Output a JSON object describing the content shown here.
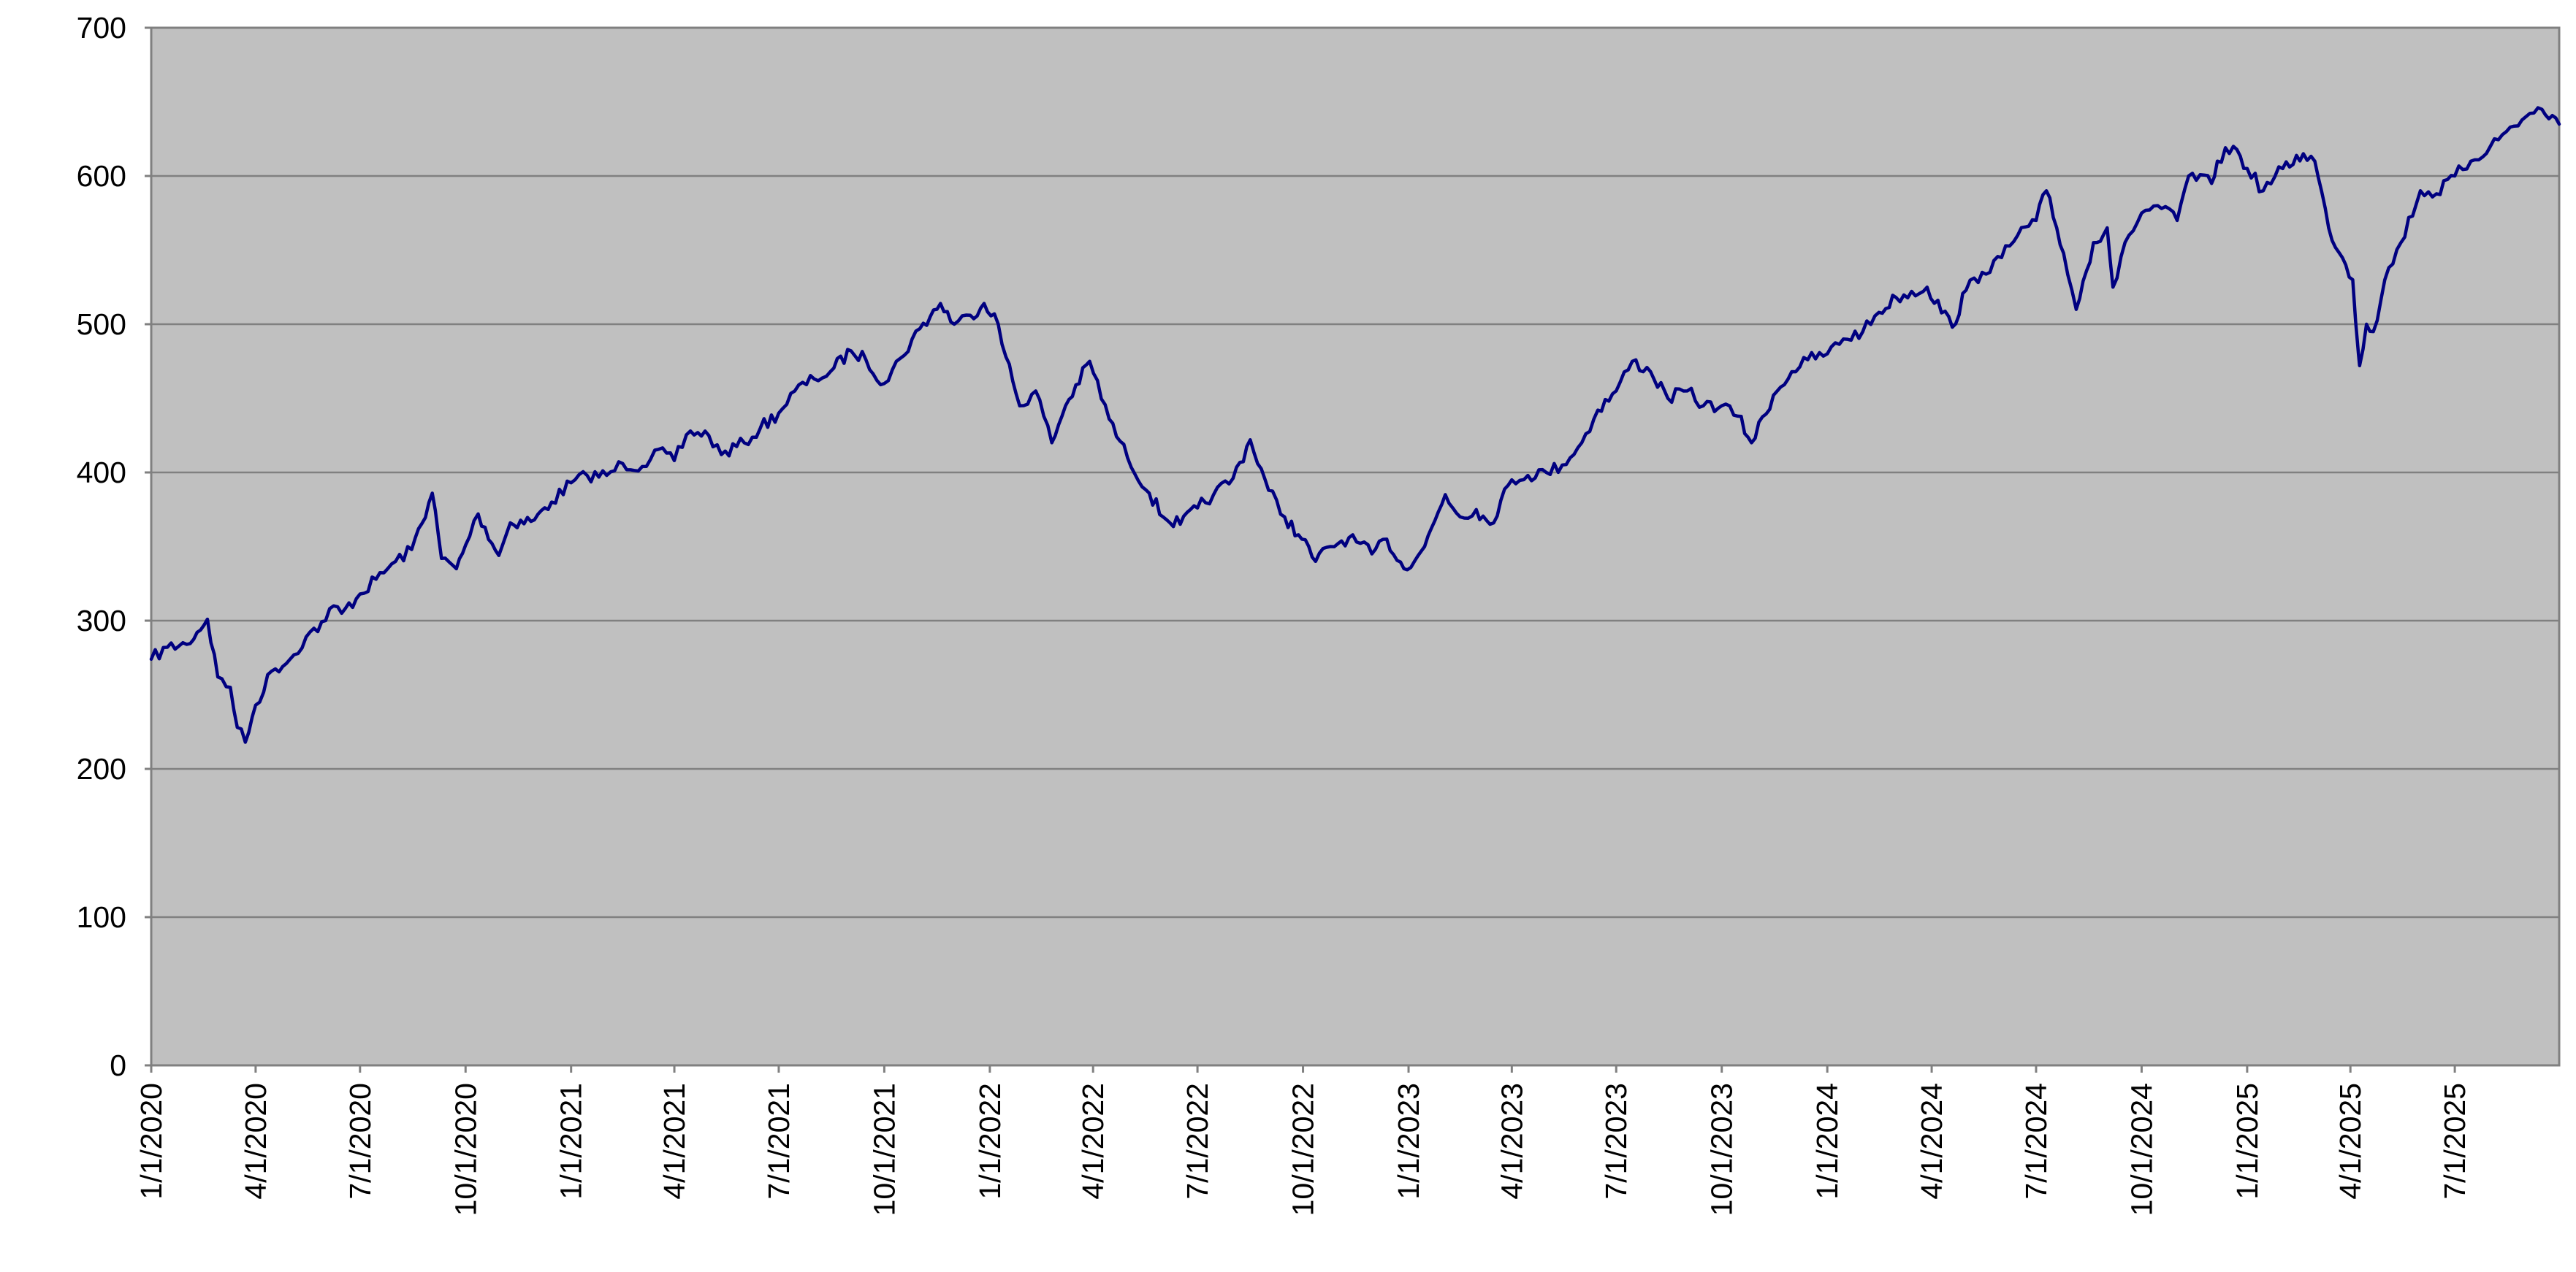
{
  "colors": {
    "plot_background": "#c0c0c0",
    "gridline": "#808080",
    "series": "#000080",
    "text": "#000000"
  },
  "chart_data": {
    "type": "line",
    "title": "",
    "xlabel": "",
    "ylabel": "",
    "ylim": [
      0,
      700
    ],
    "xlim": [
      "1/1/2020",
      "9/30/2025"
    ],
    "grid": true,
    "legend": "none",
    "y_ticks": [
      0,
      100,
      200,
      300,
      400,
      500,
      600,
      700
    ],
    "x_ticks": [
      "1/1/2020",
      "4/1/2020",
      "7/1/2020",
      "10/1/2020",
      "1/1/2021",
      "4/1/2021",
      "7/1/2021",
      "10/1/2021",
      "1/1/2022",
      "4/1/2022",
      "7/1/2022",
      "10/1/2022",
      "1/1/2023",
      "4/1/2023",
      "7/1/2023",
      "10/1/2023",
      "1/1/2024",
      "4/1/2024",
      "7/1/2024",
      "10/1/2024",
      "1/1/2025",
      "4/1/2025",
      "7/1/2025"
    ],
    "series": [
      {
        "x": [
          "1/1/2020",
          "1/15/2020",
          "2/1/2020",
          "2/19/2020",
          "2/28/2020",
          "3/10/2020",
          "3/16/2020",
          "3/23/2020",
          "4/1/2020",
          "4/15/2020",
          "5/1/2020",
          "5/15/2020",
          "6/1/2020",
          "6/8/2020",
          "6/15/2020",
          "7/1/2020",
          "7/15/2020",
          "8/1/2020",
          "8/15/2020",
          "9/2/2020",
          "9/10/2020",
          "9/23/2020",
          "10/1/2020",
          "10/12/2020",
          "10/30/2020",
          "11/9/2020",
          "11/30/2020",
          "12/15/2020",
          "1/1/2021",
          "1/15/2021",
          "2/1/2021",
          "2/15/2021",
          "3/4/2021",
          "3/15/2021",
          "4/1/2021",
          "4/15/2021",
          "5/1/2021",
          "5/12/2021",
          "6/1/2021",
          "6/15/2021",
          "7/1/2021",
          "7/15/2021",
          "8/1/2021",
          "8/15/2021",
          "9/2/2021",
          "9/15/2021",
          "10/1/2021",
          "10/15/2021",
          "11/1/2021",
          "11/19/2021",
          "12/1/2021",
          "12/15/2021",
          "12/27/2021",
          "1/5/2022",
          "1/15/2022",
          "1/27/2022",
          "2/10/2022",
          "2/24/2022",
          "3/8/2022",
          "3/29/2022",
          "4/15/2022",
          "5/1/2022",
          "5/20/2022",
          "6/1/2022",
          "6/16/2022",
          "7/1/2022",
          "7/15/2022",
          "8/1/2022",
          "8/16/2022",
          "9/1/2022",
          "9/15/2022",
          "9/30/2022",
          "10/12/2022",
          "10/25/2022",
          "11/10/2022",
          "11/30/2022",
          "12/13/2022",
          "12/28/2022",
          "1/15/2023",
          "2/2/2023",
          "2/15/2023",
          "3/1/2023",
          "3/13/2023",
          "4/1/2023",
          "4/15/2023",
          "5/1/2023",
          "5/15/2023",
          "6/1/2023",
          "6/15/2023",
          "7/1/2023",
          "7/15/2023",
          "7/31/2023",
          "8/15/2023",
          "9/1/2023",
          "9/15/2023",
          "10/1/2023",
          "10/15/2023",
          "10/27/2023",
          "11/15/2023",
          "12/1/2023",
          "12/15/2023",
          "1/1/2024",
          "1/15/2024",
          "2/1/2024",
          "2/15/2024",
          "3/1/2024",
          "3/28/2024",
          "4/19/2024",
          "5/1/2024",
          "5/15/2024",
          "6/1/2024",
          "6/15/2024",
          "7/1/2024",
          "7/10/2024",
          "7/25/2024",
          "8/5/2024",
          "8/20/2024",
          "9/1/2024",
          "9/6/2024",
          "9/20/2024",
          "10/1/2024",
          "10/15/2024",
          "11/1/2024",
          "11/11/2024",
          "12/1/2024",
          "12/6/2024",
          "12/20/2024",
          "1/1/2025",
          "1/15/2025",
          "2/1/2025",
          "2/19/2025",
          "3/1/2025",
          "3/13/2025",
          "3/25/2025",
          "4/3/2025",
          "4/8/2025",
          "4/9/2025",
          "4/15/2025",
          "4/21/2025",
          "5/1/2025",
          "5/15/2025",
          "6/1/2025",
          "6/15/2025",
          "7/1/2025",
          "7/15/2025",
          "8/1/2025",
          "8/15/2025",
          "9/1/2025",
          "9/15/2025",
          "9/30/2025"
        ],
        "y": [
          274,
          282,
          284,
          301,
          262,
          255,
          228,
          218,
          243,
          266,
          274,
          289,
          300,
          310,
          305,
          318,
          328,
          340,
          348,
          386,
          342,
          335,
          351,
          372,
          344,
          366,
          368,
          380,
          393,
          398,
          398,
          406,
          404,
          415,
          408,
          428,
          425,
          412,
          420,
          430,
          440,
          455,
          463,
          468,
          482,
          476,
          460,
          477,
          497,
          514,
          500,
          506,
          514,
          507,
          478,
          445,
          455,
          420,
          445,
          475,
          436,
          410,
          386,
          370,
          365,
          376,
          385,
          396,
          422,
          388,
          370,
          355,
          340,
          350,
          356,
          345,
          355,
          335,
          350,
          385,
          370,
          375,
          365,
          395,
          398,
          400,
          405,
          420,
          442,
          455,
          475,
          468,
          450,
          455,
          445,
          445,
          438,
          420,
          452,
          468,
          476,
          480,
          490,
          495,
          508,
          518,
          525,
          498,
          523,
          535,
          545,
          560,
          570,
          590,
          548,
          510,
          555,
          565,
          525,
          560,
          575,
          580,
          570,
          600,
          595,
          610,
          620,
          605,
          590,
          605,
          615,
          610,
          565,
          545,
          530,
          480,
          472,
          500,
          495,
          530,
          555,
          590,
          588,
          600,
          610,
          620,
          630,
          640,
          645,
          635
        ]
      }
    ]
  }
}
